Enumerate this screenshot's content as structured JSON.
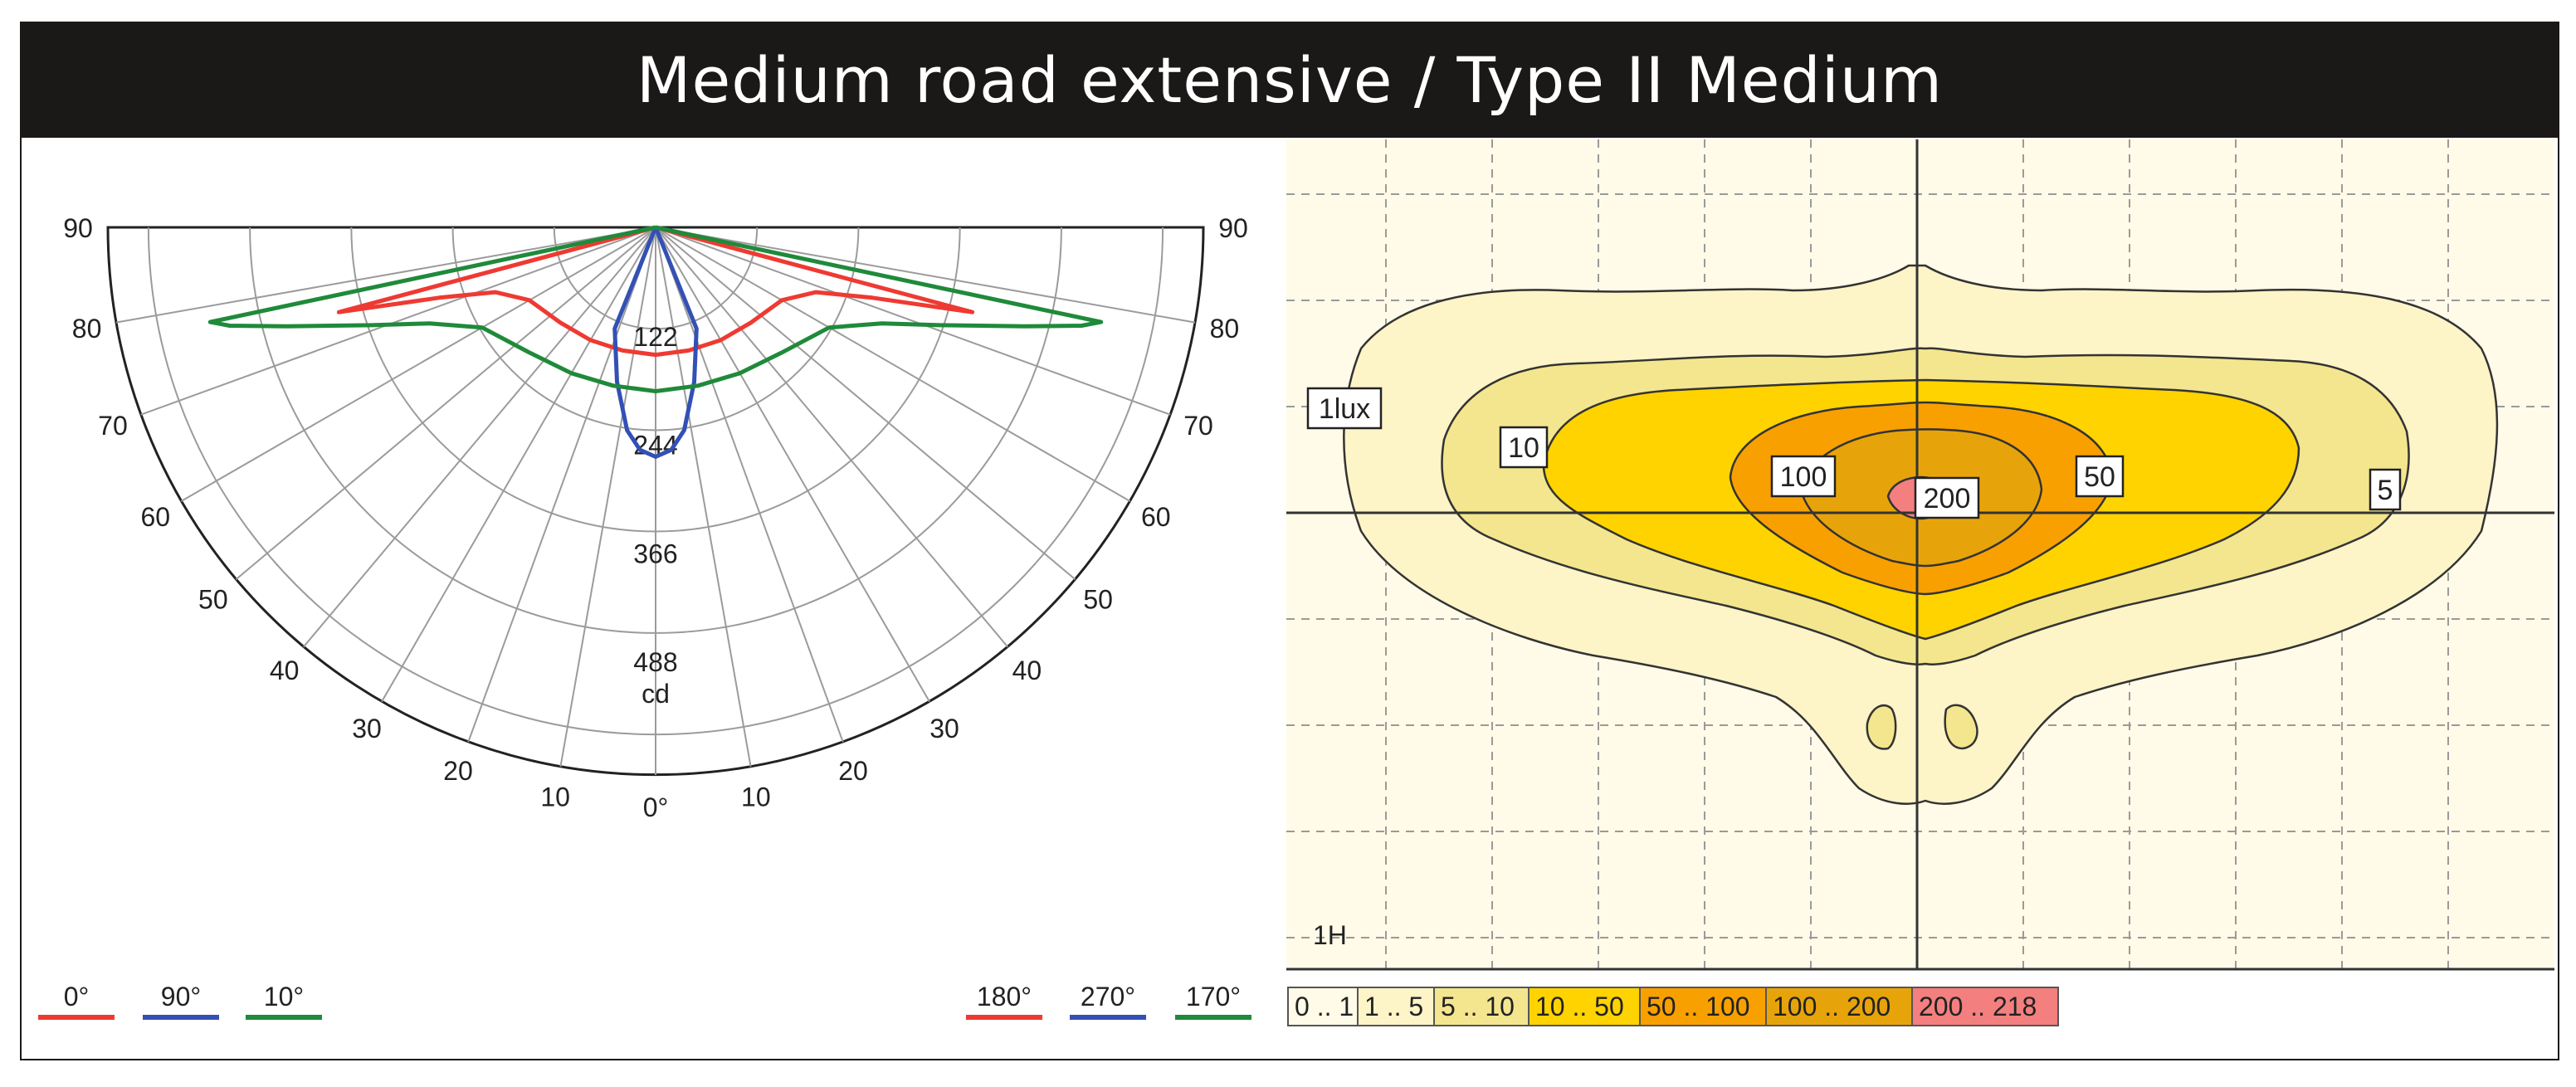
{
  "header": {
    "title": "Medium road extensive / Type II Medium"
  },
  "colors": {
    "red": "#ee3a32",
    "blue": "#3350b5",
    "green": "#1f8a3a",
    "iso_0_1": "#fffbe8",
    "iso_1_5": "#fdf4c8",
    "iso_5_10": "#f3e68e",
    "iso_10_50": "#fed300",
    "iso_50_100": "#f8a000",
    "iso_100_200": "#e7a40a",
    "iso_200_218": "#f47f7f"
  },
  "chart_data": [
    {
      "type": "polar",
      "unit": "cd",
      "radial_labels": [
        "122",
        "244",
        "366",
        "488"
      ],
      "radial_values": [
        122,
        244,
        366,
        488
      ],
      "angle_labels_left": [
        "90",
        "80",
        "70",
        "60",
        "50",
        "40",
        "30",
        "20",
        "10"
      ],
      "angle_labels_right": [
        "90",
        "80",
        "70",
        "60",
        "50",
        "40",
        "30",
        "20",
        "10"
      ],
      "angle_zero_label": "0°",
      "legend_left": [
        "0°",
        "90°",
        "10°"
      ],
      "legend_right": [
        "180°",
        "270°",
        "170°"
      ],
      "series": [
        {
          "name": "0° / 180°",
          "color": "red",
          "points": [
            [
              -75,
              360
            ],
            [
              -72,
              250
            ],
            [
              -68,
              190
            ],
            [
              -60,
              160
            ],
            [
              -45,
              148
            ],
            [
              -30,
              143
            ],
            [
              -15,
              140
            ],
            [
              0,
              140
            ],
            [
              15,
              140
            ],
            [
              30,
              143
            ],
            [
              45,
              148
            ],
            [
              60,
              160
            ],
            [
              68,
              190
            ],
            [
              72,
              250
            ],
            [
              75,
              360
            ]
          ]
        },
        {
          "name": "90° / 270°",
          "color": "blue",
          "points": [
            [
              -22,
              120
            ],
            [
              -14,
              175
            ],
            [
              -8,
              225
            ],
            [
              -4,
              245
            ],
            [
              0,
              252
            ],
            [
              4,
              245
            ],
            [
              8,
              225
            ],
            [
              14,
              175
            ],
            [
              22,
              120
            ]
          ]
        },
        {
          "name": "10° / 170°",
          "color": "green",
          "points": [
            [
              -78,
              500
            ],
            [
              -77,
              480
            ],
            [
              -75,
              420
            ],
            [
              -71,
              330
            ],
            [
              -67,
              270
            ],
            [
              -60,
              220
            ],
            [
              -45,
              195
            ],
            [
              -30,
              185
            ],
            [
              -15,
              180
            ],
            [
              0,
              180
            ],
            [
              15,
              180
            ],
            [
              30,
              185
            ],
            [
              45,
              195
            ],
            [
              60,
              220
            ],
            [
              67,
              270
            ],
            [
              71,
              330
            ],
            [
              75,
              420
            ],
            [
              77,
              480
            ],
            [
              78,
              500
            ]
          ]
        }
      ]
    },
    {
      "type": "isolux",
      "unit_label": "1lux",
      "contour_labels": [
        "10",
        "100",
        "200",
        "50",
        "5"
      ],
      "grid_label": "1H",
      "legend": [
        "0 .. 1",
        "1 .. 5",
        "5 .. 10",
        "10 .. 50",
        "50 .. 100",
        "100 .. 200",
        "200 .. 218"
      ]
    }
  ]
}
